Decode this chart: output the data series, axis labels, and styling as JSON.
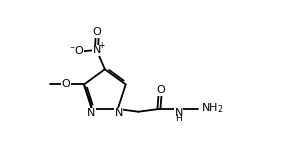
{
  "bg_color": "#ffffff",
  "line_color": "#000000",
  "lw": 1.3,
  "fs": 8.0,
  "fs_small": 6.5,
  "xlim": [
    0.0,
    10.0
  ],
  "ylim": [
    0.0,
    6.0
  ],
  "figsize": [
    2.92,
    1.66
  ],
  "dpi": 100
}
